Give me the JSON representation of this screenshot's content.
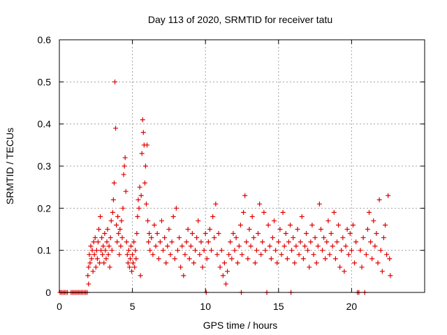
{
  "chart_data": {
    "type": "scatter",
    "title": "Day 113 of 2020, SRMTID for receiver tatu",
    "xlabel": "GPS time / hours",
    "ylabel": "SRMTID / TECUs",
    "xlim": [
      0,
      25
    ],
    "ylim": [
      0,
      0.6
    ],
    "xticks": [
      0,
      5,
      10,
      15,
      20
    ],
    "yticks": [
      0,
      0.1,
      0.2,
      0.3,
      0.4,
      0.5,
      0.6
    ],
    "xtick_labels": [
      "0",
      "5",
      "10",
      "15",
      "20"
    ],
    "ytick_labels": [
      "0",
      "0.1",
      "0.2",
      "0.3",
      "0.4",
      "0.5",
      "0.6"
    ],
    "grid": true,
    "marker": "+",
    "color": "#e00000",
    "series": [
      {
        "name": "SRMTID",
        "points": [
          [
            0.05,
            0
          ],
          [
            0.15,
            0
          ],
          [
            0.25,
            0
          ],
          [
            0.35,
            0
          ],
          [
            0.45,
            0
          ],
          [
            0.55,
            0
          ],
          [
            0.8,
            0
          ],
          [
            0.9,
            0
          ],
          [
            1.0,
            0
          ],
          [
            1.1,
            0
          ],
          [
            1.2,
            0
          ],
          [
            1.3,
            0
          ],
          [
            1.4,
            0
          ],
          [
            1.5,
            0
          ],
          [
            1.6,
            0
          ],
          [
            1.7,
            0
          ],
          [
            1.8,
            0
          ],
          [
            1.9,
            0
          ],
          [
            2.0,
            0.02
          ],
          [
            1.95,
            0.04
          ],
          [
            2.0,
            0.06
          ],
          [
            2.05,
            0.09
          ],
          [
            2.1,
            0.07
          ],
          [
            2.15,
            0.11
          ],
          [
            2.2,
            0.08
          ],
          [
            2.25,
            0.1
          ],
          [
            2.3,
            0.05
          ],
          [
            2.35,
            0.12
          ],
          [
            2.4,
            0.09
          ],
          [
            2.45,
            0.13
          ],
          [
            2.5,
            0.06
          ],
          [
            2.55,
            0.1
          ],
          [
            2.6,
            0.08
          ],
          [
            2.65,
            0.12
          ],
          [
            2.7,
            0.15
          ],
          [
            2.75,
            0.07
          ],
          [
            2.8,
            0.18
          ],
          [
            2.85,
            0.1
          ],
          [
            2.9,
            0.13
          ],
          [
            2.95,
            0.09
          ],
          [
            3.0,
            0.11
          ],
          [
            3.05,
            0.07
          ],
          [
            3.1,
            0.14
          ],
          [
            3.15,
            0.1
          ],
          [
            3.2,
            0.08
          ],
          [
            3.25,
            0.12
          ],
          [
            3.3,
            0.15
          ],
          [
            3.35,
            0.09
          ],
          [
            3.4,
            0.11
          ],
          [
            3.45,
            0.06
          ],
          [
            3.5,
            0.13
          ],
          [
            3.55,
            0.17
          ],
          [
            3.6,
            0.1
          ],
          [
            3.65,
            0.19
          ],
          [
            3.7,
            0.22
          ],
          [
            3.75,
            0.26
          ],
          [
            3.8,
            0.5
          ],
          [
            3.85,
            0.39
          ],
          [
            3.9,
            0.16
          ],
          [
            3.95,
            0.12
          ],
          [
            4.0,
            0.18
          ],
          [
            4.05,
            0.14
          ],
          [
            4.1,
            0.09
          ],
          [
            4.15,
            0.15
          ],
          [
            4.2,
            0.11
          ],
          [
            4.25,
            0.17
          ],
          [
            4.3,
            0.13
          ],
          [
            4.35,
            0.2
          ],
          [
            4.4,
            0.28
          ],
          [
            4.45,
            0.3
          ],
          [
            4.5,
            0.32
          ],
          [
            4.55,
            0.24
          ],
          [
            4.6,
            0.12
          ],
          [
            4.65,
            0.09
          ],
          [
            4.7,
            0.07
          ],
          [
            4.75,
            0.1
          ],
          [
            4.8,
            0.06
          ],
          [
            4.85,
            0.08
          ],
          [
            4.9,
            0.11
          ],
          [
            4.95,
            0.05
          ],
          [
            5.0,
            0.09
          ],
          [
            5.05,
            0.07
          ],
          [
            5.1,
            0.12
          ],
          [
            5.15,
            0.06
          ],
          [
            5.2,
            0.1
          ],
          [
            5.25,
            0.08
          ],
          [
            5.3,
            0.14
          ],
          [
            5.35,
            0.18
          ],
          [
            5.4,
            0.22
          ],
          [
            5.45,
            0.2
          ],
          [
            5.5,
            0.25
          ],
          [
            5.55,
            0.04
          ],
          [
            5.6,
            0.23
          ],
          [
            5.65,
            0.33
          ],
          [
            5.7,
            0.41
          ],
          [
            5.75,
            0.38
          ],
          [
            5.8,
            0.35
          ],
          [
            5.85,
            0.26
          ],
          [
            5.9,
            0.3
          ],
          [
            5.95,
            0.21
          ],
          [
            6.0,
            0.35
          ],
          [
            6.05,
            0.17
          ],
          [
            6.1,
            0.12
          ],
          [
            6.15,
            0.14
          ],
          [
            6.2,
            0.1
          ],
          [
            6.3,
            0.13
          ],
          [
            6.4,
            0.09
          ],
          [
            6.5,
            0.16
          ],
          [
            6.6,
            0.11
          ],
          [
            6.7,
            0.14
          ],
          [
            6.8,
            0.08
          ],
          [
            6.9,
            0.12
          ],
          [
            7.0,
            0.17
          ],
          [
            7.1,
            0.1
          ],
          [
            7.2,
            0.13
          ],
          [
            7.3,
            0.07
          ],
          [
            7.4,
            0.11
          ],
          [
            7.5,
            0.15
          ],
          [
            7.6,
            0.09
          ],
          [
            7.7,
            0.12
          ],
          [
            7.8,
            0.18
          ],
          [
            7.9,
            0.08
          ],
          [
            8.0,
            0.2
          ],
          [
            8.1,
            0.1
          ],
          [
            8.2,
            0.13
          ],
          [
            8.3,
            0.06
          ],
          [
            8.4,
            0.11
          ],
          [
            8.5,
            0.04
          ],
          [
            8.6,
            0.09
          ],
          [
            8.7,
            0.12
          ],
          [
            8.8,
            0.15
          ],
          [
            8.9,
            0.08
          ],
          [
            9.0,
            0.11
          ],
          [
            9.1,
            0.14
          ],
          [
            9.2,
            0.07
          ],
          [
            9.3,
            0.1
          ],
          [
            9.4,
            0.13
          ],
          [
            9.5,
            0.17
          ],
          [
            9.6,
            0.09
          ],
          [
            9.7,
            0.12
          ],
          [
            9.8,
            0.06
          ],
          [
            9.9,
            0.1
          ],
          [
            10.0,
            0.14
          ],
          [
            10.05,
            0
          ],
          [
            10.1,
            0.08
          ],
          [
            10.2,
            0.12
          ],
          [
            10.3,
            0.15
          ],
          [
            10.4,
            0.1
          ],
          [
            10.5,
            0.18
          ],
          [
            10.6,
            0.13
          ],
          [
            10.7,
            0.21
          ],
          [
            10.8,
            0.09
          ],
          [
            10.9,
            0.14
          ],
          [
            11.0,
            0.06
          ],
          [
            11.1,
            0.1
          ],
          [
            11.2,
            0.04
          ],
          [
            11.3,
            0.07
          ],
          [
            11.4,
            0.02
          ],
          [
            11.5,
            0.05
          ],
          [
            11.6,
            0.09
          ],
          [
            11.7,
            0.12
          ],
          [
            11.8,
            0.08
          ],
          [
            11.9,
            0.14
          ],
          [
            12.0,
            0.1
          ],
          [
            12.1,
            0.13
          ],
          [
            12.2,
            0.07
          ],
          [
            12.3,
            0.11
          ],
          [
            12.4,
            0.16
          ],
          [
            12.45,
            0
          ],
          [
            12.5,
            0.09
          ],
          [
            12.6,
            0.19
          ],
          [
            12.7,
            0.23
          ],
          [
            12.8,
            0.12
          ],
          [
            12.9,
            0.08
          ],
          [
            13.0,
            0.15
          ],
          [
            13.1,
            0.11
          ],
          [
            13.2,
            0.18
          ],
          [
            13.3,
            0.13
          ],
          [
            13.4,
            0.07
          ],
          [
            13.5,
            0.1
          ],
          [
            13.6,
            0.14
          ],
          [
            13.7,
            0.21
          ],
          [
            13.8,
            0.09
          ],
          [
            13.9,
            0.12
          ],
          [
            14.0,
            0.19
          ],
          [
            14.1,
            0.1
          ],
          [
            14.2,
            0
          ],
          [
            14.3,
            0.16
          ],
          [
            14.4,
            0.11
          ],
          [
            14.5,
            0.08
          ],
          [
            14.6,
            0.13
          ],
          [
            14.7,
            0.17
          ],
          [
            14.8,
            0.1
          ],
          [
            14.9,
            0.07
          ],
          [
            15.0,
            0.12
          ],
          [
            15.1,
            0.15
          ],
          [
            15.2,
            0.09
          ],
          [
            15.3,
            0.19
          ],
          [
            15.4,
            0.11
          ],
          [
            15.5,
            0.14
          ],
          [
            15.6,
            0.08
          ],
          [
            15.7,
            0.12
          ],
          [
            15.8,
            0.16
          ],
          [
            15.85,
            0
          ],
          [
            15.9,
            0.1
          ],
          [
            16.0,
            0.13
          ],
          [
            16.1,
            0.07
          ],
          [
            16.2,
            0.11
          ],
          [
            16.3,
            0.15
          ],
          [
            16.4,
            0.09
          ],
          [
            16.5,
            0.12
          ],
          [
            16.6,
            0.18
          ],
          [
            16.7,
            0.08
          ],
          [
            16.8,
            0.11
          ],
          [
            16.9,
            0.14
          ],
          [
            17.0,
            0.1
          ],
          [
            17.1,
            0.06
          ],
          [
            17.2,
            0.12
          ],
          [
            17.3,
            0.16
          ],
          [
            17.4,
            0.09
          ],
          [
            17.5,
            0.13
          ],
          [
            17.6,
            0.07
          ],
          [
            17.7,
            0.11
          ],
          [
            17.8,
            0.21
          ],
          [
            17.9,
            0.15
          ],
          [
            18.0,
            0.1
          ],
          [
            18.1,
            0.13
          ],
          [
            18.2,
            0.08
          ],
          [
            18.3,
            0.12
          ],
          [
            18.4,
            0.17
          ],
          [
            18.5,
            0.09
          ],
          [
            18.6,
            0.14
          ],
          [
            18.7,
            0.11
          ],
          [
            18.8,
            0.19
          ],
          [
            18.9,
            0.08
          ],
          [
            19.0,
            0.12
          ],
          [
            19.1,
            0.16
          ],
          [
            19.2,
            0.06
          ],
          [
            19.3,
            0.1
          ],
          [
            19.4,
            0.13
          ],
          [
            19.5,
            0.05
          ],
          [
            19.6,
            0.11
          ],
          [
            19.7,
            0.15
          ],
          [
            19.8,
            0.09
          ],
          [
            19.9,
            0.14
          ],
          [
            20.0,
            0.1
          ],
          [
            20.1,
            0.16
          ],
          [
            20.2,
            0.07
          ],
          [
            20.3,
            0.12
          ],
          [
            20.4,
            0
          ],
          [
            20.5,
            0
          ],
          [
            20.6,
            0.1
          ],
          [
            20.7,
            0.06
          ],
          [
            20.8,
            0.13
          ],
          [
            20.9,
            0
          ],
          [
            21.0,
            0.09
          ],
          [
            21.1,
            0.15
          ],
          [
            21.2,
            0.19
          ],
          [
            21.3,
            0.12
          ],
          [
            21.4,
            0.08
          ],
          [
            21.5,
            0.17
          ],
          [
            21.6,
            0.11
          ],
          [
            21.7,
            0.14
          ],
          [
            21.8,
            0.07
          ],
          [
            21.9,
            0.22
          ],
          [
            22.0,
            0.1
          ],
          [
            22.1,
            0.05
          ],
          [
            22.2,
            0.13
          ],
          [
            22.3,
            0.16
          ],
          [
            22.4,
            0.09
          ],
          [
            22.5,
            0.23
          ],
          [
            22.6,
            0.08
          ],
          [
            22.65,
            0.04
          ]
        ]
      }
    ]
  }
}
